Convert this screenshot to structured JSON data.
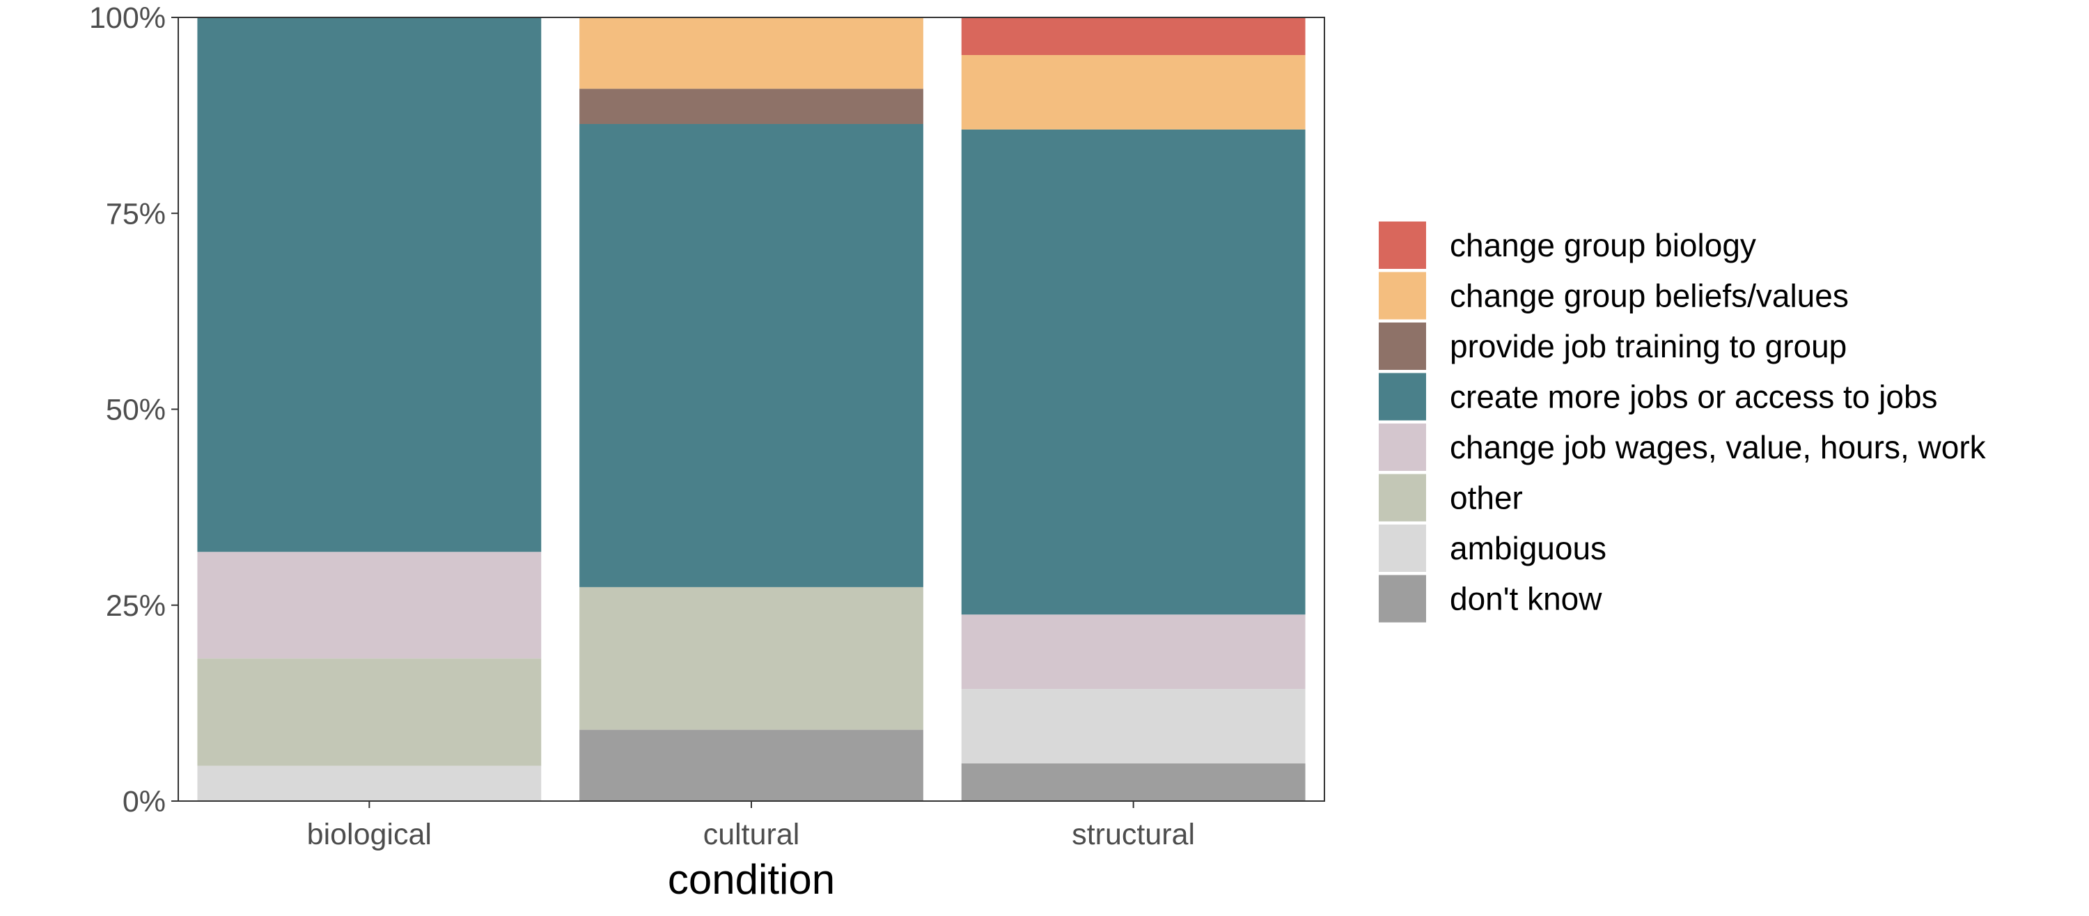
{
  "chart_data": {
    "type": "bar",
    "stacked": true,
    "normalized": true,
    "categories": [
      "biological",
      "cultural",
      "structural"
    ],
    "xlabel": "condition",
    "ylabel": "",
    "ylim": [
      0,
      1
    ],
    "yticks": [
      {
        "value": 0,
        "label": "0%"
      },
      {
        "value": 0.25,
        "label": "25%"
      },
      {
        "value": 0.5,
        "label": "50%"
      },
      {
        "value": 0.75,
        "label": "75%"
      },
      {
        "value": 1,
        "label": "100%"
      }
    ],
    "grid": false,
    "legend_position": "right",
    "series": [
      {
        "name": "don't know",
        "color": "#9e9e9e",
        "values": [
          0.0,
          0.091,
          0.048
        ]
      },
      {
        "name": "ambiguous",
        "color": "#d9d9d9",
        "values": [
          0.045,
          0.0,
          0.095
        ]
      },
      {
        "name": "other",
        "color": "#c3c7b6",
        "values": [
          0.137,
          0.182,
          0.0
        ]
      },
      {
        "name": "change job wages, value, hours, work",
        "color": "#d4c6ce",
        "values": [
          0.136,
          0.0,
          0.095
        ]
      },
      {
        "name": "create more jobs or access to jobs",
        "color": "#4a808a",
        "values": [
          0.682,
          0.591,
          0.619
        ]
      },
      {
        "name": "provide job training to group",
        "color": "#8e7268",
        "values": [
          0.0,
          0.045,
          0.0
        ]
      },
      {
        "name": "change group beliefs/values",
        "color": "#f4be7f",
        "values": [
          0.0,
          0.091,
          0.095
        ]
      },
      {
        "name": "change group biology",
        "color": "#d9675c",
        "values": [
          0.0,
          0.0,
          0.048
        ]
      }
    ],
    "legend_order": [
      "change group biology",
      "change group beliefs/values",
      "provide job training to group",
      "create more jobs or access to jobs",
      "change job wages, value, hours, work",
      "other",
      "ambiguous",
      "don't know"
    ]
  }
}
